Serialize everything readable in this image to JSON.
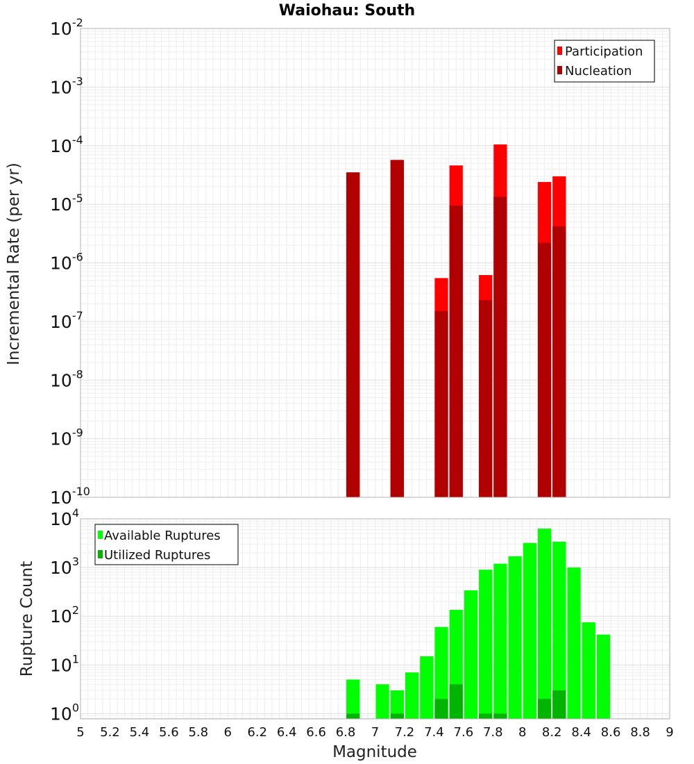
{
  "chart_data": [
    {
      "type": "bar",
      "title": "Waiohau: South",
      "ylabel": "Incremental Rate (per yr)",
      "xlabel": "",
      "xlim": [
        5,
        9
      ],
      "ylim": [
        1e-10,
        0.01
      ],
      "y_scale": "log",
      "y_tick_exponents": [
        "-10",
        "-9",
        "-8",
        "-7",
        "-6",
        "-5",
        "-4",
        "-3",
        "-2"
      ],
      "bin_width": 0.1,
      "grid": true,
      "legend_position": "top-right",
      "series": [
        {
          "name": "Participation",
          "color": "#ff0000",
          "x": [
            6.85,
            7.15,
            7.45,
            7.55,
            7.75,
            7.85,
            8.15,
            8.25
          ],
          "values": [
            3.5e-05,
            5.7e-05,
            5.5e-07,
            4.6e-05,
            6.2e-07,
            0.000105,
            2.4e-05,
            3e-05
          ]
        },
        {
          "name": "Nucleation",
          "color": "#b00000",
          "x": [
            6.85,
            7.15,
            7.45,
            7.55,
            7.75,
            7.85,
            8.15,
            8.25
          ],
          "values": [
            3.5e-05,
            5.7e-05,
            1.5e-07,
            9.5e-06,
            2.3e-07,
            1.35e-05,
            2.2e-06,
            4.2e-06
          ]
        }
      ]
    },
    {
      "type": "bar",
      "title": "",
      "ylabel": "Rupture Count",
      "xlabel": "Magnitude",
      "xlim": [
        5,
        9
      ],
      "ylim": [
        0.78,
        10000
      ],
      "y_scale": "log",
      "y_tick_exponents": [
        "0",
        "1",
        "2",
        "3",
        "4"
      ],
      "x_ticks": [
        "5",
        "5.2",
        "5.4",
        "5.6",
        "5.8",
        "6",
        "6.2",
        "6.4",
        "6.6",
        "6.8",
        "7",
        "7.2",
        "7.4",
        "7.6",
        "7.8",
        "8",
        "8.2",
        "8.4",
        "8.6",
        "8.8",
        "9"
      ],
      "bin_width": 0.1,
      "grid": true,
      "legend_position": "top-left",
      "series": [
        {
          "name": "Available Ruptures",
          "color": "#00ff00",
          "x": [
            6.85,
            7.05,
            7.15,
            7.25,
            7.35,
            7.45,
            7.55,
            7.65,
            7.75,
            7.85,
            7.95,
            8.05,
            8.15,
            8.25,
            8.35,
            8.45,
            8.55
          ],
          "values": [
            5,
            4,
            3,
            7,
            15,
            60,
            135,
            340,
            900,
            1200,
            1700,
            3200,
            6300,
            3400,
            1000,
            75,
            42
          ]
        },
        {
          "name": "Utilized Ruptures",
          "color": "#00b400",
          "x": [
            6.85,
            7.15,
            7.45,
            7.55,
            7.75,
            7.85,
            8.15,
            8.25
          ],
          "values": [
            1,
            1,
            2,
            4,
            1,
            1,
            2,
            3
          ]
        }
      ]
    }
  ]
}
